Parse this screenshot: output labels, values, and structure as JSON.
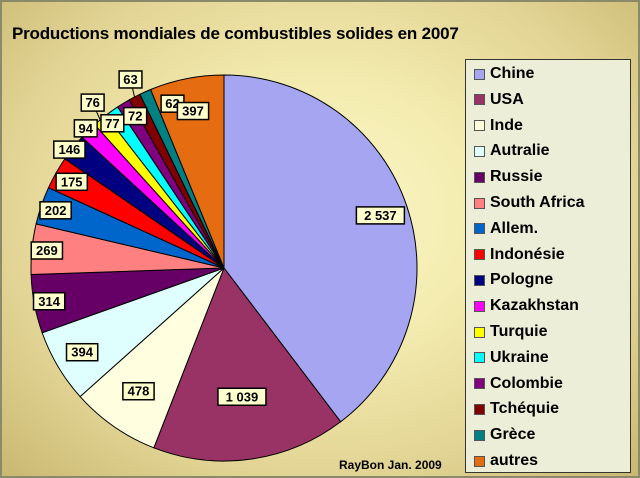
{
  "chart_data": {
    "type": "pie",
    "title": "Productions mondiales de combustibles solides en 2007",
    "categories": [
      "Chine",
      "USA",
      "Inde",
      "Autralie",
      "Russie",
      "South Africa",
      "Allem.",
      "Indonésie",
      "Pologne",
      "Kazakhstan",
      "Turquie",
      "Ukraine",
      "Colombie",
      "Tchéquie",
      "Grèce",
      "autres"
    ],
    "values": [
      2537,
      1039,
      478,
      394,
      314,
      269,
      202,
      175,
      146,
      94,
      76,
      77,
      72,
      63,
      62,
      397
    ],
    "data_labels": [
      "2 537",
      "1 039",
      "478",
      "394",
      "314",
      "269",
      "202",
      "175",
      "146",
      "94",
      "76",
      "77",
      "72",
      "63",
      "62",
      "397"
    ],
    "colors": [
      "#a5a5f2",
      "#993366",
      "#ffffe0",
      "#dfffff",
      "#660066",
      "#ff8080",
      "#0066cc",
      "#ff0000",
      "#000080",
      "#ff00ff",
      "#ffff00",
      "#00ffff",
      "#800080",
      "#800000",
      "#008080",
      "#e66c12"
    ],
    "legend_position": "right"
  },
  "credit": "RayBon Jan. 2009"
}
